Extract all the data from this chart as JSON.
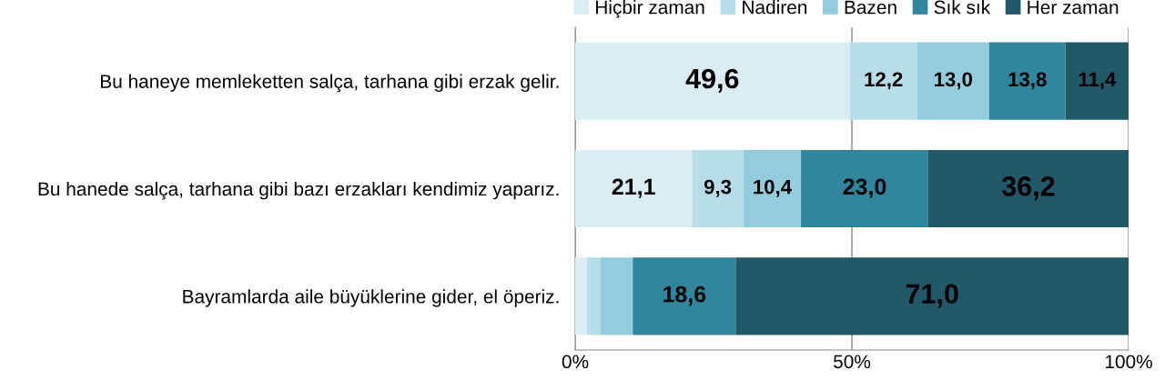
{
  "chart_data": {
    "type": "bar",
    "orientation": "horizontal",
    "stacked": true,
    "categories": [
      "Bu haneye memleketten salça, tarhana gibi erzak gelir.",
      "Bu hanede salça, tarhana gibi bazı erzakları kendimiz yaparız.",
      "Bayramlarda aile büyüklerine gider, el öperiz."
    ],
    "series": [
      {
        "name": "Hiçbir zaman",
        "color": "#daedf3",
        "values": [
          49.6,
          21.1,
          2.1
        ],
        "value_labels": [
          "49,6",
          "21,1",
          null
        ]
      },
      {
        "name": "Nadiren",
        "color": "#b7dde8",
        "values": [
          12.2,
          9.3,
          2.5
        ],
        "value_labels": [
          "12,2",
          "9,3",
          null
        ]
      },
      {
        "name": "Bazen",
        "color": "#93cddd",
        "values": [
          13.0,
          10.4,
          5.8
        ],
        "value_labels": [
          "13,0",
          "10,4",
          null
        ]
      },
      {
        "name": "Sık sık",
        "color": "#31859c",
        "values": [
          13.8,
          23.0,
          18.6
        ],
        "value_labels": [
          "13,8",
          "23,0",
          "18,6"
        ]
      },
      {
        "name": "Her zaman",
        "color": "#215968",
        "values": [
          11.4,
          36.2,
          71.0
        ],
        "value_labels": [
          "11,4",
          "36,2",
          "71,0"
        ]
      }
    ],
    "xlim": [
      0,
      100
    ],
    "xticks": [
      {
        "value": 0,
        "label": "0%"
      },
      {
        "value": 50,
        "label": "50%"
      },
      {
        "value": 100,
        "label": "100%"
      }
    ],
    "grid": "x",
    "legend": "top right"
  }
}
